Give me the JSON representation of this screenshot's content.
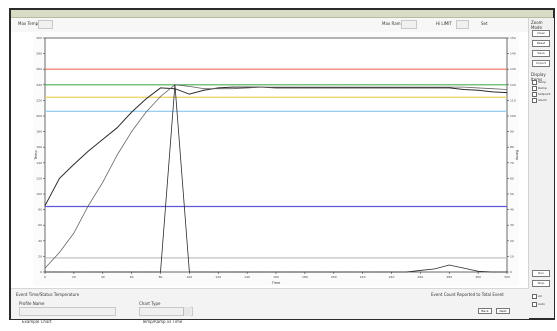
{
  "toolbar": {
    "max_temp_label": "Max Temp",
    "max_temp_value": "",
    "max_ramp_label": "Max Ramp",
    "max_ramp_value": "",
    "limits_label": "Hi LIMIT",
    "limits_value": "",
    "limits_sub": "Set"
  },
  "right_panel": {
    "top_label": "Zoom Mode",
    "buttons": [
      "Clear",
      "Reset",
      "Save",
      "Import"
    ],
    "section_label": "Display Items",
    "checkboxes": [
      "Temp",
      "Ramp",
      "Setpoint",
      "Alarm"
    ],
    "bottom_buttons": [
      "Run",
      "Stop"
    ],
    "bottom_labels": [
      "All",
      "Auto"
    ]
  },
  "bottom": {
    "left_label": "Event Time/Status Temperature",
    "right_label": "Event Count Reported to Total Event",
    "profile_label": "Profile Name",
    "profile_value": "Example Chart",
    "chart_select_label": "Chart Type",
    "chart_select_value": "Temp/Ramp vs Time",
    "btn1": "Back",
    "btn2": "Next"
  },
  "chart_data": {
    "type": "line",
    "x": [
      0,
      10,
      20,
      30,
      40,
      50,
      60,
      70,
      80,
      90,
      100,
      110,
      120,
      130,
      140,
      150,
      160,
      170,
      180,
      190,
      200,
      210,
      220,
      230,
      240,
      250,
      260,
      270,
      280,
      290,
      300,
      310,
      320
    ],
    "xlabel": "Time",
    "ylabel": "Temp",
    "y2label": "Ramp",
    "xlim": [
      0,
      320
    ],
    "ylim": [
      0,
      300
    ],
    "xticks": [
      "0",
      "20",
      "40",
      "60",
      "80",
      "100",
      "120",
      "140",
      "160",
      "180",
      "200",
      "220",
      "240",
      "260",
      "280",
      "300",
      "320"
    ],
    "yticks": [
      "0",
      "20",
      "40",
      "60",
      "80",
      "100",
      "120",
      "140",
      "160",
      "180",
      "200",
      "220",
      "240",
      "260",
      "280",
      "300"
    ],
    "y2ticks": [
      "0",
      "10",
      "20",
      "30",
      "40",
      "50",
      "60",
      "70",
      "80",
      "90",
      "100",
      "110",
      "120",
      "130",
      "140",
      "150"
    ],
    "hlines": [
      {
        "y": 260,
        "color": "#ef6b5b"
      },
      {
        "y": 240,
        "color": "#4caf50"
      },
      {
        "y": 224,
        "color": "#f0d060"
      },
      {
        "y": 206,
        "color": "#88c8f2"
      },
      {
        "y": 84,
        "color": "#5d58d8"
      },
      {
        "y": 18,
        "color": "#bbbbbb"
      }
    ],
    "series": [
      {
        "name": "",
        "color": "#2b2b2b",
        "values": [
          85,
          120,
          138,
          155,
          170,
          185,
          205,
          222,
          236,
          235,
          228,
          233,
          236,
          237,
          237,
          237,
          236,
          236,
          236,
          236,
          236,
          236,
          236,
          236,
          236,
          236,
          236,
          236,
          236,
          234,
          233,
          231,
          230
        ]
      },
      {
        "name": "",
        "color": "#666666",
        "values": [
          5,
          25,
          50,
          85,
          115,
          150,
          180,
          205,
          225,
          240,
          238,
          235,
          235,
          235,
          236,
          237,
          237,
          237,
          237,
          237,
          237,
          237,
          237,
          237,
          237,
          237,
          237,
          237,
          237,
          237,
          236,
          235,
          234
        ]
      },
      {
        "name": "",
        "color": "#2b2b2b",
        "values": [
          0,
          0,
          0,
          0,
          0,
          0,
          0,
          0,
          0,
          240,
          0,
          0,
          0,
          0,
          0,
          0,
          0,
          0,
          0,
          0,
          0,
          0,
          0,
          0,
          0,
          0,
          2,
          4,
          9,
          5,
          1,
          0,
          0
        ]
      }
    ],
    "grid": false
  }
}
